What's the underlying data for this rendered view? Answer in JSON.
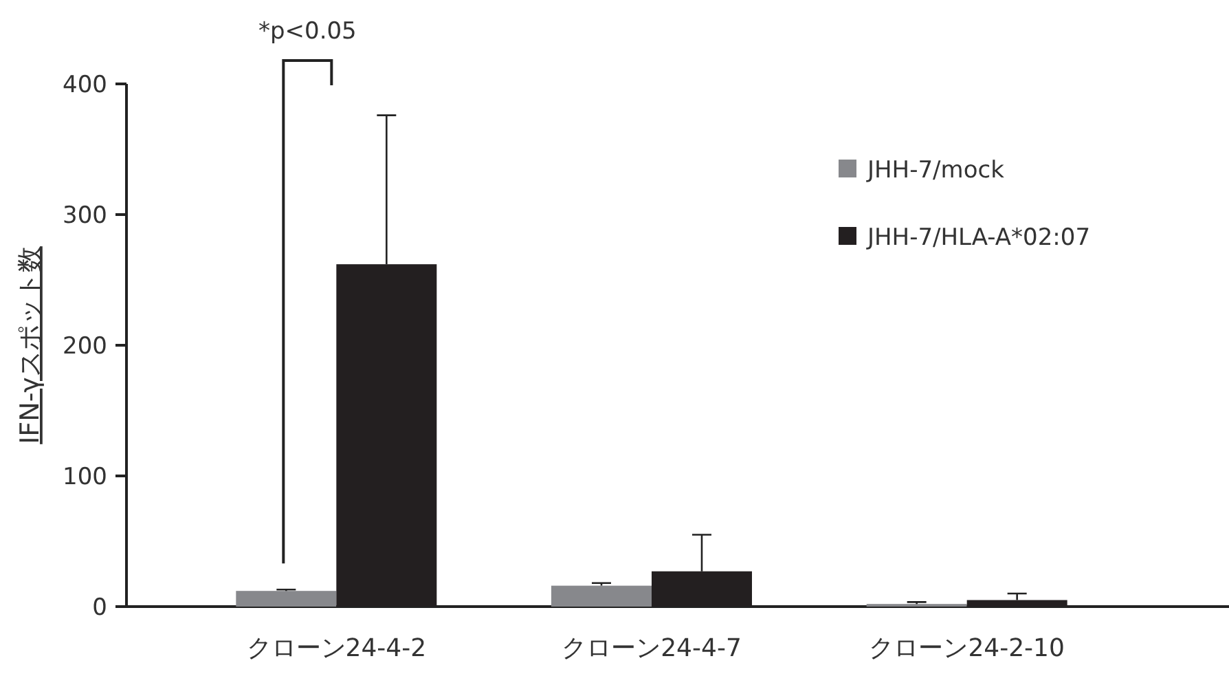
{
  "chart_data": {
    "type": "bar",
    "ylabel": "IFN-γスポット数",
    "categories": [
      "クローン24-4-2",
      "クローン24-4-7",
      "クローン24-2-10"
    ],
    "series": [
      {
        "name": "JHH-7/mock",
        "color": "#87888c",
        "values": [
          12,
          16,
          2
        ],
        "errors": [
          [
            12,
            13
          ],
          [
            16,
            18
          ],
          [
            2,
            3.5
          ]
        ]
      },
      {
        "name": "JHH-7/HLA-A*02:07",
        "color": "#231f20",
        "values": [
          262,
          27,
          5
        ],
        "errors": [
          [
            262,
            376
          ],
          [
            27,
            55
          ],
          [
            5,
            10
          ]
        ]
      }
    ],
    "ylim": [
      0,
      400
    ],
    "yticks": [
      0,
      100,
      200,
      300,
      400
    ],
    "grid": false,
    "legend": "right",
    "annotations": [
      "*p<0.05"
    ]
  }
}
